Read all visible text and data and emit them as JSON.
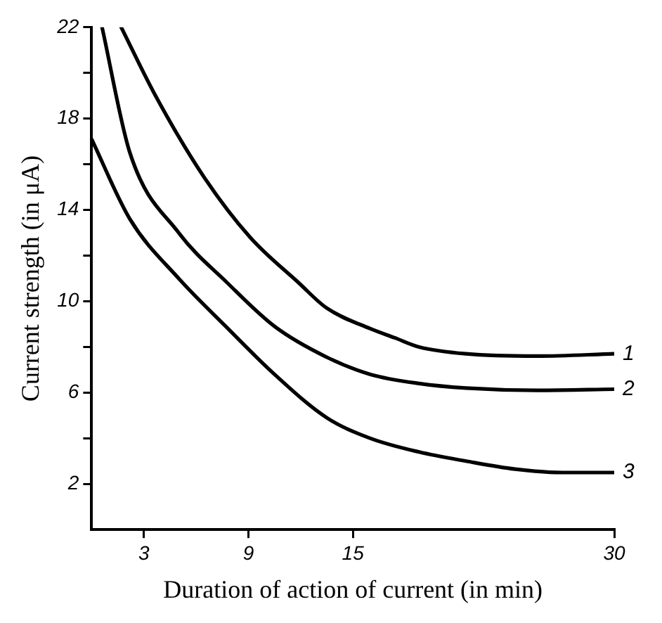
{
  "chart_data": {
    "type": "line",
    "xlabel": "Duration of action of current (in min)",
    "ylabel": "Current strength (in μA)",
    "xlim": [
      0,
      30
    ],
    "xticks": [
      3,
      9,
      15,
      30
    ],
    "ylim": [
      0,
      22
    ],
    "yticks": [
      {
        "value": 2,
        "label": "2"
      },
      {
        "value": 4,
        "label": null
      },
      {
        "value": 6,
        "label": "6"
      },
      {
        "value": 8,
        "label": null
      },
      {
        "value": 10,
        "label": "10"
      },
      {
        "value": 12,
        "label": null
      },
      {
        "value": 14,
        "label": "14"
      },
      {
        "value": 16,
        "label": null
      },
      {
        "value": 18,
        "label": "18"
      },
      {
        "value": 20,
        "label": null
      },
      {
        "value": 22,
        "label": "22"
      }
    ],
    "grid": false,
    "legend": false,
    "marker": "none",
    "line_style": "solid",
    "series": [
      {
        "name": "1",
        "color": "#000000",
        "x": [
          1.7,
          3.6,
          6.4,
          9.1,
          11.9,
          13.5,
          16,
          17.4,
          18.8,
          21.5,
          25.6,
          30
        ],
        "values": [
          22,
          19.1,
          15.5,
          12.8,
          10.8,
          9.7,
          8.8,
          8.4,
          8.0,
          7.7,
          7.6,
          7.7
        ]
      },
      {
        "name": "2",
        "color": "#000000",
        "x": [
          0.6,
          2.2,
          5,
          7.8,
          10.5,
          13.5,
          16,
          18.8,
          21.5,
          25.6,
          30
        ],
        "values": [
          22,
          16.5,
          13,
          10.8,
          8.9,
          7.55,
          6.8,
          6.4,
          6.2,
          6.1,
          6.15
        ]
      },
      {
        "name": "3",
        "color": "#000000",
        "x": [
          0,
          2.2,
          5,
          7.7,
          10.5,
          13.5,
          16,
          18.8,
          21.5,
          24.3,
          27,
          30
        ],
        "values": [
          17.1,
          13.6,
          11,
          8.9,
          6.8,
          4.9,
          4.0,
          3.4,
          3.0,
          2.65,
          2.5,
          2.5
        ]
      }
    ]
  }
}
